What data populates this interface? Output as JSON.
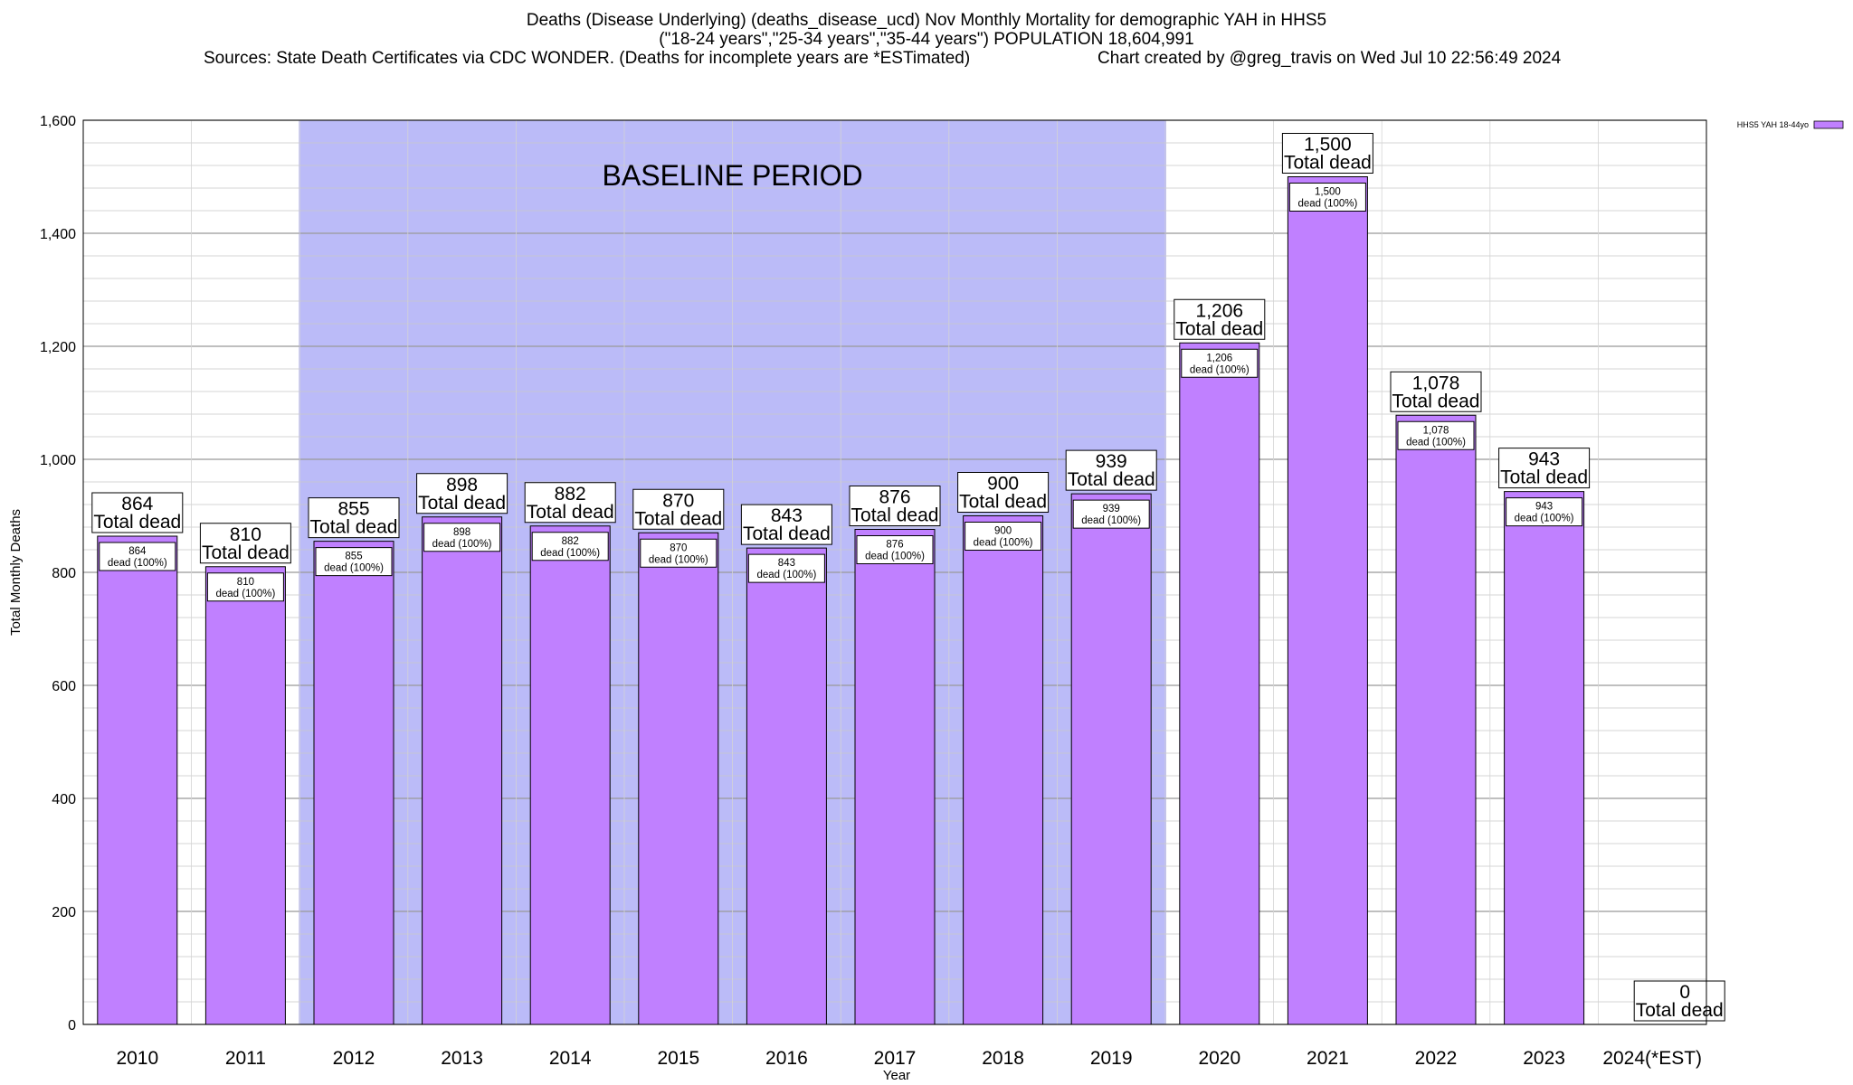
{
  "header": {
    "title_line1": "Deaths (Disease Underlying) (deaths_disease_ucd) Nov Monthly Mortality for demographic YAH in HHS5",
    "title_line2": "(\"18-24 years\",\"25-34 years\",\"35-44 years\") POPULATION 18,604,991",
    "sources": "Sources: State Death Certificates via CDC WONDER. (Deaths for incomplete years are *ESTimated)",
    "credit": "Chart created by @greg_travis on Wed Jul 10 22:56:49 2024"
  },
  "chart_data": {
    "type": "bar",
    "title": "Deaths (Disease Underlying) (deaths_disease_ucd) Nov Monthly Mortality for demographic YAH in HHS5",
    "xlabel": "Year",
    "ylabel": "Total Monthly Deaths",
    "ylim": [
      0,
      1600
    ],
    "y_ticks": [
      "0",
      "200",
      "400",
      "600",
      "800",
      "1,000",
      "1,200",
      "1,400",
      "1,600"
    ],
    "grid": true,
    "legend_position": "top-right",
    "baseline_label": "BASELINE PERIOD",
    "baseline_range": [
      "2012",
      "2019"
    ],
    "bar_color": "#c080ff",
    "baseline_color": "#bbbbf8",
    "categories": [
      "2010",
      "2011",
      "2012",
      "2013",
      "2014",
      "2015",
      "2016",
      "2017",
      "2018",
      "2019",
      "2020",
      "2021",
      "2022",
      "2023",
      "2024(*EST)"
    ],
    "series": [
      {
        "name": "HHS5 YAH 18-44yo",
        "values": [
          864,
          810,
          855,
          898,
          882,
          870,
          843,
          876,
          900,
          939,
          1206,
          1500,
          1078,
          943,
          0
        ],
        "labels": [
          "864",
          "810",
          "855",
          "898",
          "882",
          "870",
          "843",
          "876",
          "900",
          "939",
          "1,206",
          "1,500",
          "1,078",
          "943",
          "0"
        ],
        "total_caption": "Total dead",
        "inner_caption": "dead (100%)"
      }
    ]
  }
}
